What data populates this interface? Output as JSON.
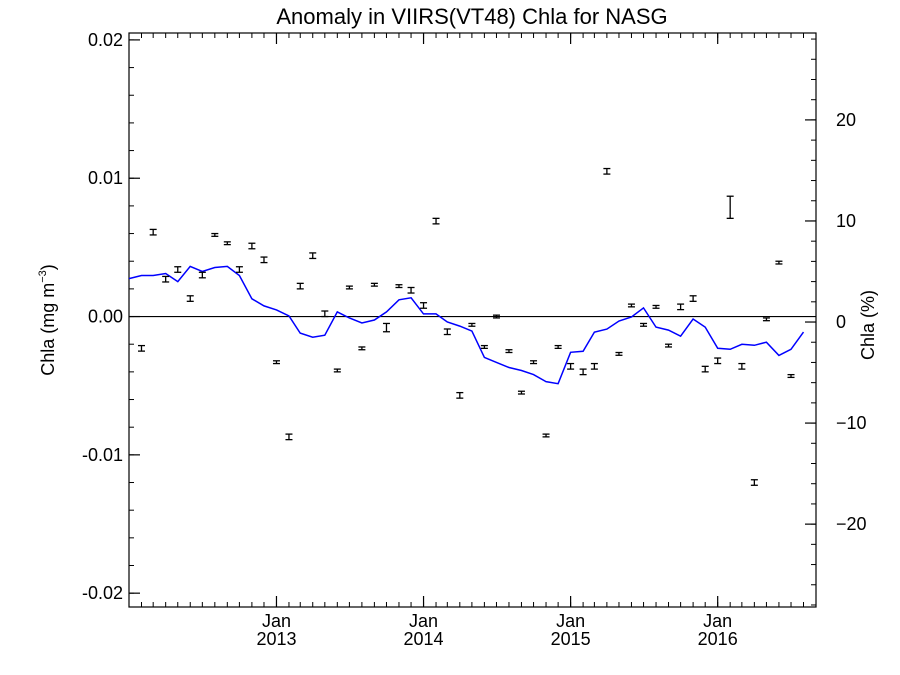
{
  "chart_data": {
    "type": "line",
    "title": "Anomaly in VIIRS(VT48) Chla for NASG",
    "y_left": {
      "label_prefix": "Chla (mg m",
      "label_sup": "−3",
      "label_suffix": ")",
      "range": [
        -0.021,
        0.0205
      ],
      "ticks": [
        {
          "value": 0.02,
          "label": "0.02"
        },
        {
          "value": 0.01,
          "label": "0.01"
        },
        {
          "value": 0.0,
          "label": "0.00"
        },
        {
          "value": -0.01,
          "label": "-0.01"
        },
        {
          "value": -0.02,
          "label": "-0.02"
        }
      ],
      "minor_step": 0.002
    },
    "y_right": {
      "label": "Chla (%)",
      "range": [
        -28.2,
        28.6
      ],
      "ticks": [
        {
          "value": 20,
          "label": "20"
        },
        {
          "value": 10,
          "label": "10"
        },
        {
          "value": 0,
          "label": "0"
        },
        {
          "value": -10,
          "label": "−10"
        },
        {
          "value": -20,
          "label": "−20"
        }
      ],
      "minor_step": 2
    },
    "x": {
      "range": [
        "2012-01-01",
        "2016-09-01"
      ],
      "ticks": [
        {
          "date": "2013-01-01",
          "line1": "Jan",
          "line2": "2013"
        },
        {
          "date": "2014-01-01",
          "line1": "Jan",
          "line2": "2014"
        },
        {
          "date": "2015-01-01",
          "line1": "Jan",
          "line2": "2015"
        },
        {
          "date": "2016-01-01",
          "line1": "Jan",
          "line2": "2016"
        }
      ],
      "minor": "monthly"
    },
    "zero_line": 0,
    "colors": {
      "line": "#0000ff",
      "points": "#000000",
      "axis": "#000000"
    },
    "line_series": {
      "axis": "right",
      "points": [
        [
          "2012-01-01",
          4.3
        ],
        [
          "2012-02-01",
          4.6
        ],
        [
          "2012-03-01",
          4.6
        ],
        [
          "2012-04-01",
          4.8
        ],
        [
          "2012-05-01",
          4.0
        ],
        [
          "2012-06-01",
          5.5
        ],
        [
          "2012-07-01",
          5.0
        ],
        [
          "2012-08-01",
          5.4
        ],
        [
          "2012-09-01",
          5.5
        ],
        [
          "2012-10-01",
          4.6
        ],
        [
          "2012-11-01",
          2.3
        ],
        [
          "2012-12-01",
          1.6
        ],
        [
          "2013-01-01",
          1.2
        ],
        [
          "2013-02-01",
          0.6
        ],
        [
          "2013-03-01",
          -1.1
        ],
        [
          "2013-04-01",
          -1.5
        ],
        [
          "2013-05-01",
          -1.3
        ],
        [
          "2013-06-01",
          1.0
        ],
        [
          "2013-07-01",
          0.4
        ],
        [
          "2013-08-01",
          -0.1
        ],
        [
          "2013-09-01",
          0.2
        ],
        [
          "2013-10-01",
          1.0
        ],
        [
          "2013-11-01",
          2.2
        ],
        [
          "2013-12-01",
          2.4
        ],
        [
          "2014-01-01",
          0.8
        ],
        [
          "2014-02-01",
          0.8
        ],
        [
          "2014-03-01",
          0.0
        ],
        [
          "2014-04-01",
          -0.4
        ],
        [
          "2014-05-01",
          -0.9
        ],
        [
          "2014-06-01",
          -3.5
        ],
        [
          "2014-07-01",
          -4.0
        ],
        [
          "2014-08-01",
          -4.5
        ],
        [
          "2014-09-01",
          -4.8
        ],
        [
          "2014-10-01",
          -5.2
        ],
        [
          "2014-11-01",
          -5.9
        ],
        [
          "2014-12-01",
          -6.1
        ],
        [
          "2015-01-01",
          -3.0
        ],
        [
          "2015-02-01",
          -2.9
        ],
        [
          "2015-03-01",
          -1.0
        ],
        [
          "2015-04-01",
          -0.7
        ],
        [
          "2015-05-01",
          0.1
        ],
        [
          "2015-06-01",
          0.5
        ],
        [
          "2015-07-01",
          1.4
        ],
        [
          "2015-08-01",
          -0.5
        ],
        [
          "2015-09-01",
          -0.8
        ],
        [
          "2015-10-01",
          -1.4
        ],
        [
          "2015-11-01",
          0.3
        ],
        [
          "2015-12-01",
          -0.5
        ],
        [
          "2016-01-01",
          -2.6
        ],
        [
          "2016-02-01",
          -2.7
        ],
        [
          "2016-03-01",
          -2.2
        ],
        [
          "2016-04-01",
          -2.3
        ],
        [
          "2016-05-01",
          -2.0
        ],
        [
          "2016-06-01",
          -3.3
        ],
        [
          "2016-07-01",
          -2.7
        ],
        [
          "2016-08-01",
          -1.0
        ]
      ]
    },
    "points_series": {
      "axis": "left",
      "points": [
        [
          "2012-02-01",
          -0.0023,
          0.0002
        ],
        [
          "2012-03-01",
          0.0061,
          0.0002
        ],
        [
          "2012-04-01",
          0.0027,
          0.0002
        ],
        [
          "2012-05-01",
          0.0034,
          0.0002
        ],
        [
          "2012-06-01",
          0.0013,
          0.0002
        ],
        [
          "2012-07-01",
          0.003,
          0.0002
        ],
        [
          "2012-08-01",
          0.0059,
          0.0001
        ],
        [
          "2012-09-01",
          0.0053,
          0.0001
        ],
        [
          "2012-10-01",
          0.0034,
          0.0002
        ],
        [
          "2012-11-01",
          0.0051,
          0.0002
        ],
        [
          "2012-12-01",
          0.0041,
          0.0002
        ],
        [
          "2013-01-01",
          -0.0033,
          0.0001
        ],
        [
          "2013-02-01",
          -0.0087,
          0.0002
        ],
        [
          "2013-03-01",
          0.0022,
          0.0002
        ],
        [
          "2013-04-01",
          0.0044,
          0.0002
        ],
        [
          "2013-05-01",
          0.0002,
          0.0002
        ],
        [
          "2013-06-01",
          -0.0039,
          0.0001
        ],
        [
          "2013-07-01",
          0.0021,
          0.0001
        ],
        [
          "2013-08-01",
          -0.0023,
          0.0001
        ],
        [
          "2013-09-01",
          0.0023,
          0.0001
        ],
        [
          "2013-10-01",
          -0.0008,
          0.0003
        ],
        [
          "2013-11-01",
          0.0022,
          0.0001
        ],
        [
          "2013-12-01",
          0.0019,
          0.0002
        ],
        [
          "2014-01-01",
          0.0008,
          0.0002
        ],
        [
          "2014-02-01",
          0.0069,
          0.0002
        ],
        [
          "2014-03-01",
          -0.0011,
          0.0002
        ],
        [
          "2014-04-01",
          -0.0057,
          0.0002
        ],
        [
          "2014-05-01",
          -0.0006,
          0.0001
        ],
        [
          "2014-06-01",
          -0.0022,
          0.0001
        ],
        [
          "2014-07-01",
          0.0,
          0.0001
        ],
        [
          "2014-08-01",
          -0.0025,
          0.0001
        ],
        [
          "2014-09-01",
          -0.0055,
          0.0001
        ],
        [
          "2014-10-01",
          -0.0033,
          0.0001
        ],
        [
          "2014-11-01",
          -0.0086,
          0.0001
        ],
        [
          "2014-12-01",
          -0.0022,
          0.0001
        ],
        [
          "2015-01-01",
          -0.0036,
          0.0002
        ],
        [
          "2015-02-01",
          -0.004,
          0.0002
        ],
        [
          "2015-03-01",
          -0.0036,
          0.0002
        ],
        [
          "2015-04-01",
          0.0105,
          0.0002
        ],
        [
          "2015-05-01",
          -0.0027,
          0.0001
        ],
        [
          "2015-06-01",
          0.0008,
          0.0001
        ],
        [
          "2015-07-01",
          -0.0006,
          0.0001
        ],
        [
          "2015-08-01",
          0.0007,
          0.0001
        ],
        [
          "2015-09-01",
          -0.0021,
          0.0001
        ],
        [
          "2015-10-01",
          0.0007,
          0.0002
        ],
        [
          "2015-11-01",
          0.0013,
          0.0002
        ],
        [
          "2015-12-01",
          -0.0038,
          0.0002
        ],
        [
          "2016-01-01",
          -0.0032,
          0.0002
        ],
        [
          "2016-02-01",
          0.0079,
          0.0008
        ],
        [
          "2016-03-01",
          -0.0036,
          0.0002
        ],
        [
          "2016-04-01",
          -0.012,
          0.0002
        ],
        [
          "2016-05-01",
          -0.0002,
          0.0001
        ],
        [
          "2016-06-01",
          0.0039,
          0.0001
        ],
        [
          "2016-07-01",
          -0.0043,
          0.0001
        ]
      ]
    }
  }
}
